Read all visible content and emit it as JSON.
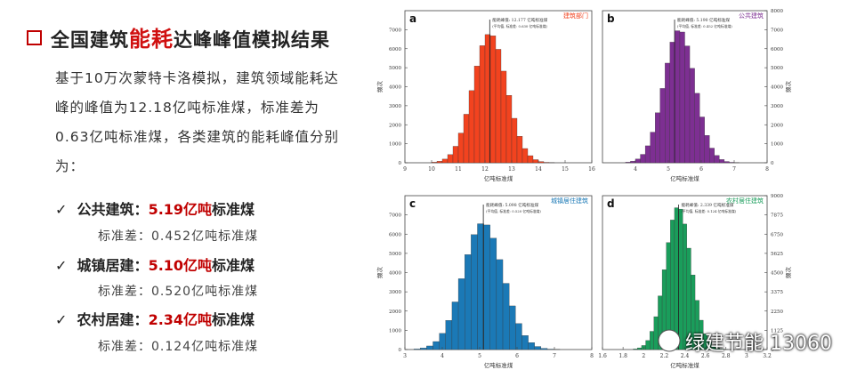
{
  "slide": {
    "title_parts": [
      "全国建筑",
      "能耗",
      "达峰峰值模拟结果"
    ],
    "paragraph": "基于10万次蒙特卡洛模拟，建筑领域能耗达峰的峰值为12.18亿吨标准煤，标准差为0.63亿吨标准煤，各类建筑的能耗峰值分别为：",
    "items": [
      {
        "name": "公共建筑：",
        "value": "5.19亿吨",
        "unit": "标准煤",
        "sd": "标准差：0.452亿吨标准煤"
      },
      {
        "name": "城镇居建：",
        "value": "5.10亿吨",
        "unit": "标准煤",
        "sd": "标准差：0.520亿吨标准煤"
      },
      {
        "name": "农村居建：",
        "value": "2.34亿吨",
        "unit": "标准煤",
        "sd": "标准差：0.124亿吨标准煤"
      }
    ],
    "watermark": "绿建节能 13060"
  },
  "chart_data": [
    {
      "type": "histogram",
      "panel": "a",
      "label": "建筑部门",
      "color": "#f2431f",
      "annotation": "能耗峰值: 12.177 亿吨标准煤",
      "note": "(平均值, 标准差: 0.630 亿吨标准煤)",
      "peak": 12.177,
      "x_label": "亿吨标准煤",
      "y_label": "频次",
      "y_axis_side": "left",
      "bins": [
        10,
        10.2,
        10.4,
        10.6,
        10.8,
        11,
        11.2,
        11.4,
        11.6,
        11.8,
        12,
        12.2,
        12.4,
        12.6,
        12.8,
        13,
        13.2,
        13.4,
        13.6,
        13.8,
        14,
        14.2,
        14.4,
        14.6
      ],
      "counts": [
        29,
        80,
        193,
        429,
        866,
        1563,
        2552,
        3796,
        5088,
        6159,
        6743,
        6678,
        5968,
        4821,
        3548,
        2339,
        1395,
        749,
        373,
        164,
        65,
        23,
        8
      ],
      "xlim": [
        9,
        16
      ],
      "xticks": [
        9,
        10,
        11,
        12,
        13,
        14,
        15,
        16
      ],
      "ylim": [
        0,
        8000
      ],
      "yticks": [
        0,
        1000,
        2000,
        3000,
        4000,
        5000,
        6000,
        7000
      ]
    },
    {
      "type": "histogram",
      "panel": "b",
      "label": "公共建筑",
      "color": "#7d2f92",
      "annotation": "能耗峰值: 5.190 亿吨标准煤",
      "note": "(平均值, 标准差: 0.452 亿吨标准煤)",
      "peak": 5.19,
      "x_label": "亿吨标准煤",
      "y_label": "频次",
      "y_axis_side": "right",
      "bins": [
        3.7,
        3.85,
        4,
        4.15,
        4.3,
        4.45,
        4.6,
        4.75,
        4.9,
        5.05,
        5.2,
        5.35,
        5.5,
        5.65,
        5.8,
        5.95,
        6.1,
        6.25,
        6.4,
        6.55,
        6.7,
        6.85,
        7,
        7.15
      ],
      "counts": [
        30,
        82,
        199,
        442,
        892,
        1610,
        2629,
        3910,
        5241,
        6344,
        6945,
        6878,
        6147,
        4966,
        3654,
        2409,
        1437,
        771,
        384,
        169,
        67,
        24,
        8
      ],
      "xlim": [
        3,
        8
      ],
      "xticks": [
        4,
        5,
        6,
        7,
        8
      ],
      "ylim": [
        0,
        8000
      ],
      "yticks": [
        0,
        1000,
        2000,
        3000,
        4000,
        5000,
        6000,
        7000,
        8000
      ]
    },
    {
      "type": "histogram",
      "panel": "c",
      "label": "城镇居住建筑",
      "color": "#1b79b6",
      "annotation": "能耗峰值: 5.098 亿吨标准煤",
      "note": "(平均值, 标准差: 0.520 亿吨标准煤)",
      "peak": 5.098,
      "x_label": "亿吨标准煤",
      "y_label": "频次",
      "y_axis_side": "left",
      "bins": [
        3.24,
        3.41,
        3.58,
        3.75,
        3.92,
        4.09,
        4.26,
        4.43,
        4.6,
        4.77,
        4.94,
        5.11,
        5.28,
        5.45,
        5.62,
        5.79,
        5.96,
        6.13,
        6.3,
        6.47,
        6.64,
        6.81,
        6.98,
        7.15
      ],
      "counts": [
        28,
        78,
        187,
        416,
        840,
        1516,
        2475,
        3682,
        4935,
        5974,
        6541,
        6478,
        5789,
        4676,
        3442,
        2269,
        1353,
        727,
        362,
        159,
        63,
        22,
        8
      ],
      "xlim": [
        3,
        8
      ],
      "xticks": [
        3,
        4,
        5,
        6,
        7,
        8
      ],
      "ylim": [
        0,
        8000
      ],
      "yticks": [
        0,
        1000,
        2000,
        3000,
        4000,
        5000,
        6000,
        7000
      ]
    },
    {
      "type": "histogram",
      "panel": "d",
      "label": "农村居住建筑",
      "color": "#1a9d5b",
      "annotation": "能耗峰值: 2.339 亿吨标准煤",
      "note": "(平均值, 标准差: 0.124 亿吨标准煤)",
      "peak": 2.339,
      "x_label": "亿吨标准煤",
      "y_label": "频次",
      "y_axis_side": "right",
      "bins": [
        1.9,
        1.94,
        1.98,
        2.02,
        2.06,
        2.1,
        2.14,
        2.18,
        2.22,
        2.26,
        2.3,
        2.34,
        2.38,
        2.42,
        2.46,
        2.5,
        2.54,
        2.58,
        2.62,
        2.66,
        2.7,
        2.74,
        2.78,
        2.82
      ],
      "counts": [
        36,
        98,
        237,
        528,
        1065,
        1922,
        3139,
        4669,
        6258,
        7576,
        8294,
        8214,
        7341,
        5930,
        4364,
        2877,
        1716,
        921,
        459,
        202,
        80,
        28,
        10
      ],
      "xlim": [
        1.6,
        3.2
      ],
      "xticks": [
        1.6,
        1.8,
        2,
        2.2,
        2.4,
        2.6,
        2.8,
        3,
        3.2
      ],
      "ylim": [
        0,
        9000
      ],
      "yticks": [
        0,
        1125,
        2250,
        3375,
        4500,
        5625,
        6750,
        7875,
        9000
      ]
    }
  ]
}
